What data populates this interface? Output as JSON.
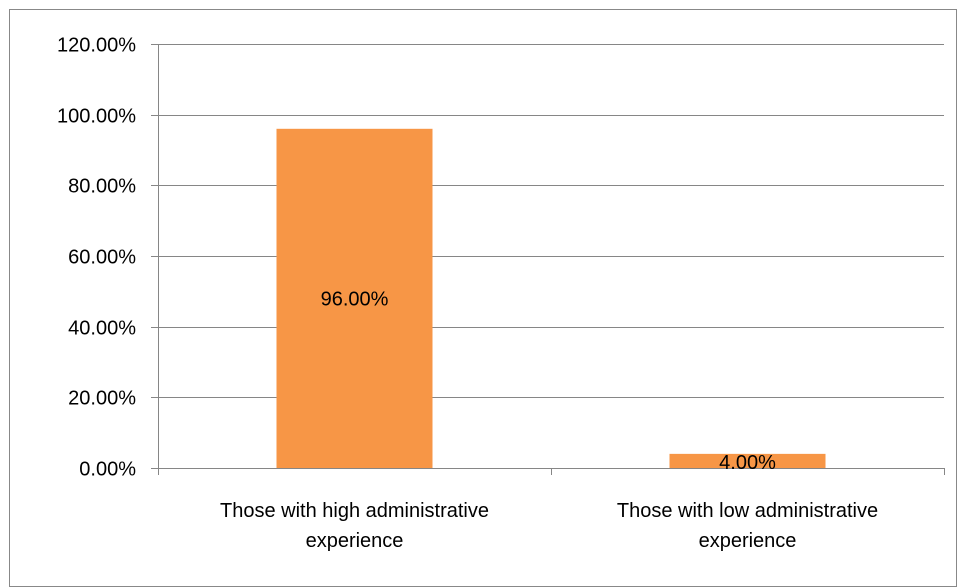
{
  "chart_data": {
    "type": "bar",
    "categories": [
      [
        "Those with high administrative",
        "experience"
      ],
      [
        "Those with low administrative",
        "experience"
      ]
    ],
    "values": [
      96.0,
      4.0
    ],
    "data_labels": [
      "96.00%",
      "4.00%"
    ],
    "title": "",
    "xlabel": "",
    "ylabel": "",
    "ylim": [
      0,
      120
    ],
    "yticks": [
      0,
      20,
      40,
      60,
      80,
      100,
      120
    ],
    "ytick_labels": [
      "0.00%",
      "20.00%",
      "40.00%",
      "60.00%",
      "80.00%",
      "100.00%",
      "120.00%"
    ],
    "grid": true,
    "legend": "none",
    "bar_color": "#F79646",
    "grid_color": "#868686"
  }
}
